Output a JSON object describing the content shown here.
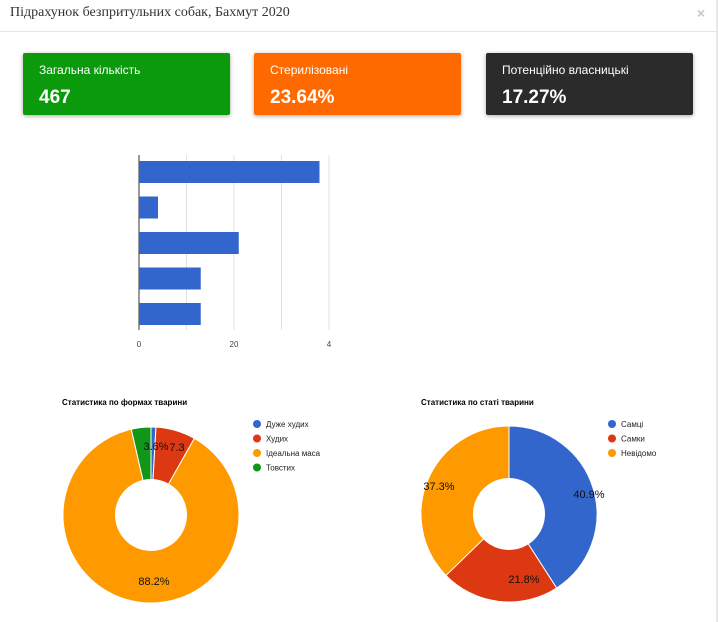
{
  "modal": {
    "title": "Підрахунок безпритульних собак, Бахмут 2020",
    "close_label": "×"
  },
  "cards": [
    {
      "label": "Загальна кількість",
      "value": "467",
      "color": "#0b9a0b"
    },
    {
      "label": "Стерилізовані",
      "value": "23.64%",
      "color": "#ff6a00"
    },
    {
      "label": "Потенційно власницькі",
      "value": "17.27%",
      "color": "#2b2b2b"
    }
  ],
  "chart_data": [
    {
      "type": "bar",
      "orientation": "horizontal",
      "values": [
        38,
        4,
        21,
        13,
        13
      ],
      "xlim": [
        0,
        40
      ],
      "xticks": [
        "0",
        "20",
        "4"
      ],
      "grid": true,
      "colors": [
        "#3366cc"
      ]
    },
    {
      "type": "pie",
      "donut": true,
      "title": "Статистика по формах тварини",
      "labels": [
        "Дуже худих",
        "Худих",
        "Ідеальна маса",
        "Товстих"
      ],
      "values": [
        0.9,
        7.3,
        88.2,
        3.6
      ],
      "slice_labels": [
        "",
        "7.3",
        "88.2%",
        "3.6%"
      ],
      "colors": [
        "#3366cc",
        "#dc3912",
        "#ff9900",
        "#109618"
      ],
      "legend": "right"
    },
    {
      "type": "pie",
      "donut": true,
      "title": "Статистика по статі тварини",
      "labels": [
        "Самці",
        "Самки",
        "Невідомо"
      ],
      "values": [
        40.9,
        21.8,
        37.3
      ],
      "slice_labels": [
        "40.9%",
        "21.8%",
        "37.3%"
      ],
      "colors": [
        "#3366cc",
        "#dc3912",
        "#ff9900"
      ],
      "legend": "right"
    }
  ]
}
